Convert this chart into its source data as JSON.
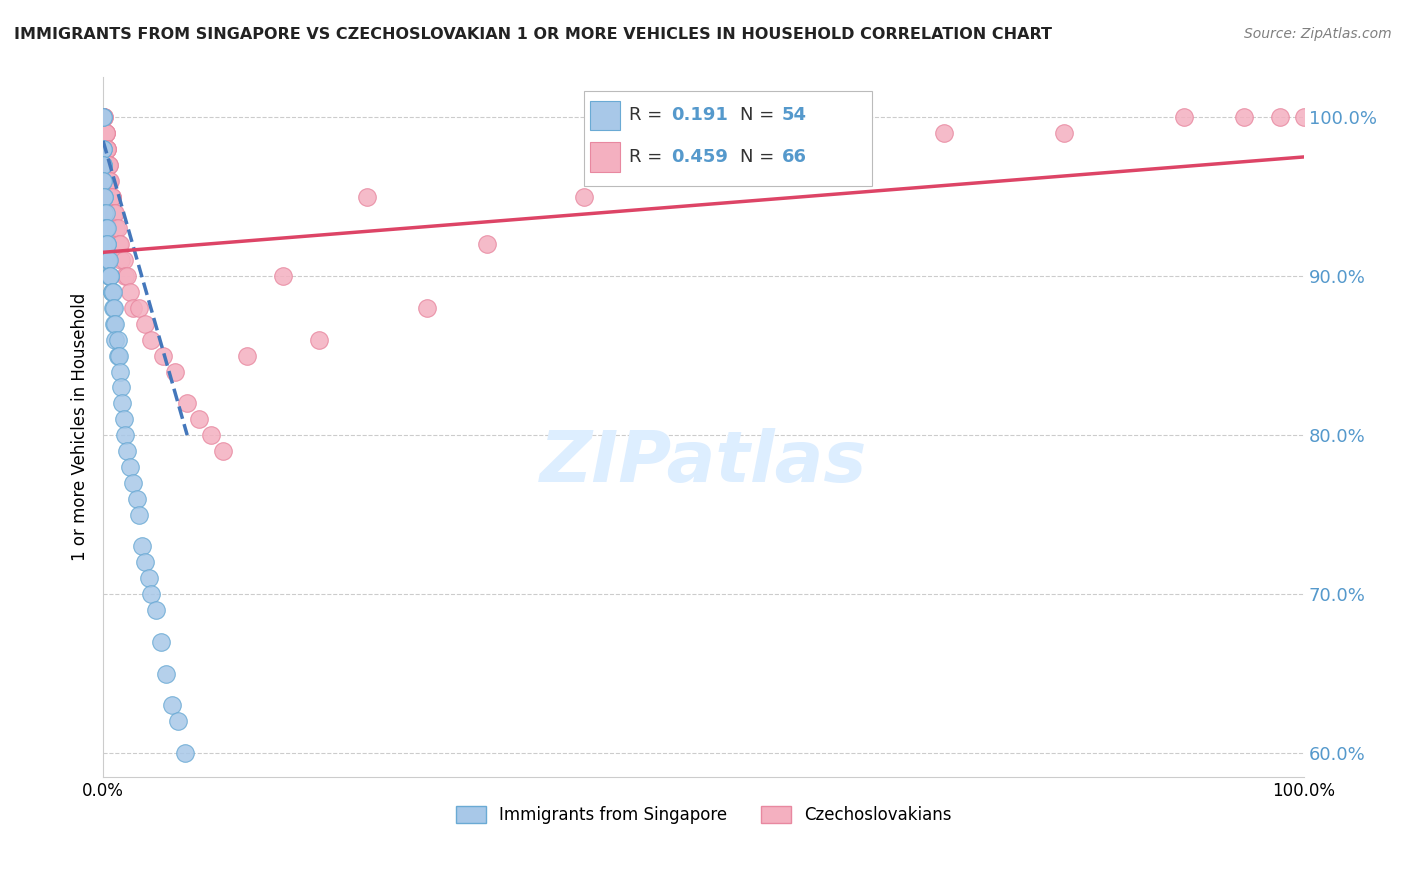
{
  "title": "IMMIGRANTS FROM SINGAPORE VS CZECHOSLOVAKIAN 1 OR MORE VEHICLES IN HOUSEHOLD CORRELATION CHART",
  "source": "Source: ZipAtlas.com",
  "legend_labels": [
    "Immigrants from Singapore",
    "Czechoslovakians"
  ],
  "ylabel": "1 or more Vehicles in Household",
  "R_singapore": 0.191,
  "N_singapore": 54,
  "R_czech": 0.459,
  "N_czech": 66,
  "color_singapore_fill": "#a8c8e8",
  "color_singapore_edge": "#6aaad4",
  "color_czech_fill": "#f4b0c0",
  "color_czech_edge": "#e888a0",
  "line_color_singapore": "#4477bb",
  "line_color_czech": "#dd4466",
  "bg_color": "#ffffff",
  "grid_color": "#cccccc",
  "watermark_color": "#ddeeff",
  "title_color": "#222222",
  "ytick_color": "#5599cc",
  "xlim": [
    0.0,
    1.0
  ],
  "ylim": [
    0.585,
    1.025
  ],
  "y_ticks": [
    0.6,
    0.7,
    0.8,
    0.9,
    1.0
  ],
  "y_tick_labels": [
    "60.0%",
    "70.0%",
    "80.0%",
    "90.0%",
    "100.0%"
  ],
  "sg_x": [
    0.0,
    0.0,
    0.0,
    0.0,
    0.0,
    0.0,
    0.0,
    0.0,
    0.001,
    0.001,
    0.001,
    0.002,
    0.002,
    0.002,
    0.003,
    0.003,
    0.003,
    0.004,
    0.004,
    0.005,
    0.005,
    0.006,
    0.006,
    0.007,
    0.007,
    0.008,
    0.008,
    0.009,
    0.009,
    0.01,
    0.01,
    0.012,
    0.012,
    0.013,
    0.014,
    0.015,
    0.016,
    0.017,
    0.018,
    0.02,
    0.022,
    0.025,
    0.028,
    0.03,
    0.032,
    0.035,
    0.038,
    0.04,
    0.044,
    0.048,
    0.052,
    0.057,
    0.062,
    0.068
  ],
  "sg_y": [
    1.0,
    1.0,
    0.98,
    0.98,
    0.97,
    0.97,
    0.96,
    0.96,
    0.95,
    0.95,
    0.94,
    0.94,
    0.93,
    0.93,
    0.93,
    0.92,
    0.92,
    0.91,
    0.91,
    0.91,
    0.9,
    0.9,
    0.9,
    0.89,
    0.89,
    0.89,
    0.88,
    0.88,
    0.87,
    0.87,
    0.86,
    0.86,
    0.85,
    0.85,
    0.84,
    0.83,
    0.82,
    0.81,
    0.8,
    0.79,
    0.78,
    0.77,
    0.76,
    0.75,
    0.73,
    0.72,
    0.71,
    0.7,
    0.69,
    0.67,
    0.65,
    0.63,
    0.62,
    0.6
  ],
  "cz_x": [
    0.0,
    0.0,
    0.0,
    0.0,
    0.0,
    0.0,
    0.0,
    0.0,
    0.0,
    0.0,
    0.001,
    0.001,
    0.001,
    0.001,
    0.002,
    0.002,
    0.002,
    0.003,
    0.003,
    0.003,
    0.004,
    0.004,
    0.005,
    0.005,
    0.005,
    0.006,
    0.006,
    0.007,
    0.007,
    0.008,
    0.009,
    0.01,
    0.011,
    0.012,
    0.013,
    0.014,
    0.015,
    0.017,
    0.018,
    0.02,
    0.022,
    0.025,
    0.03,
    0.035,
    0.04,
    0.05,
    0.06,
    0.07,
    0.08,
    0.09,
    0.1,
    0.12,
    0.15,
    0.18,
    0.22,
    0.27,
    0.32,
    0.4,
    0.5,
    0.6,
    0.7,
    0.8,
    0.9,
    0.95,
    0.98,
    1.0
  ],
  "cz_y": [
    1.0,
    1.0,
    1.0,
    1.0,
    1.0,
    1.0,
    1.0,
    1.0,
    1.0,
    1.0,
    1.0,
    1.0,
    0.99,
    0.99,
    0.99,
    0.99,
    0.99,
    0.98,
    0.98,
    0.98,
    0.97,
    0.97,
    0.97,
    0.97,
    0.96,
    0.96,
    0.95,
    0.95,
    0.95,
    0.94,
    0.94,
    0.94,
    0.93,
    0.93,
    0.92,
    0.92,
    0.91,
    0.91,
    0.9,
    0.9,
    0.89,
    0.88,
    0.88,
    0.87,
    0.86,
    0.85,
    0.84,
    0.82,
    0.81,
    0.8,
    0.79,
    0.85,
    0.9,
    0.86,
    0.95,
    0.88,
    0.92,
    0.95,
    0.97,
    0.98,
    0.99,
    0.99,
    1.0,
    1.0,
    1.0,
    1.0
  ],
  "sg_trend_x": [
    0.0,
    0.07
  ],
  "sg_trend_y": [
    0.985,
    0.8
  ],
  "cz_trend_x": [
    0.0,
    1.0
  ],
  "cz_trend_y": [
    0.915,
    0.975
  ]
}
